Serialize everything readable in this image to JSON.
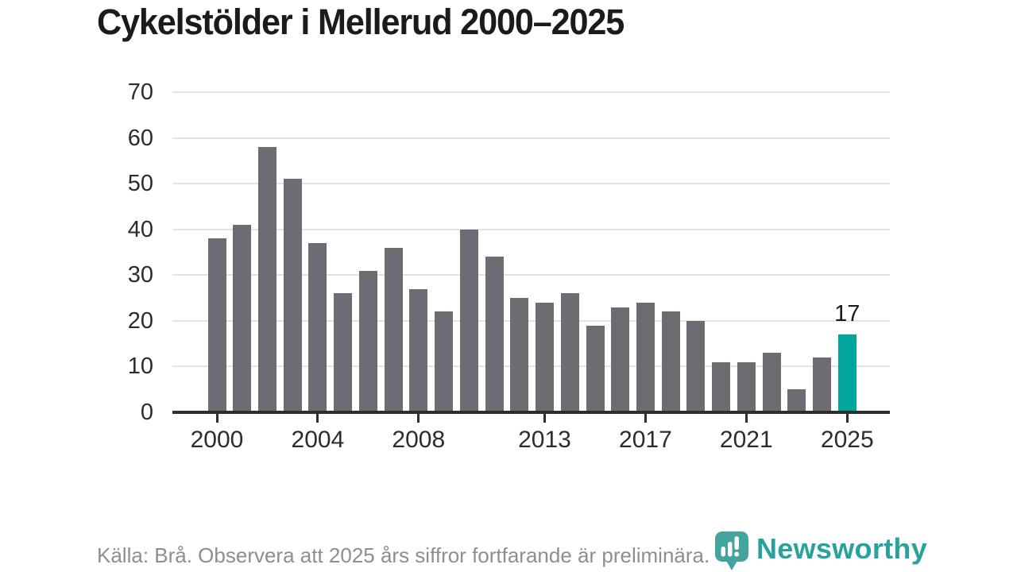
{
  "title": "Cykelstölder i Mellerud 2000–2025",
  "source_note": "Källa: Brå. Observera att 2025 års siffror fortfarande är preliminära.",
  "logo": {
    "text": "Newsworthy",
    "icon": "newsworthy-chart-bubble-icon"
  },
  "colors": {
    "bar": "#6e6c72",
    "highlight": "#00a59c",
    "gridline": "#e3e3e3",
    "axis": "#2e2e2e",
    "tick_label": "#2c2c2c",
    "title_text": "#1b1b1b",
    "source_text": "#8e8e8e",
    "logo_teal": "#43a49d"
  },
  "chart_data": {
    "type": "bar",
    "title": "Cykelstölder i Mellerud 2000–2025",
    "x": [
      2000,
      2001,
      2002,
      2003,
      2004,
      2005,
      2006,
      2007,
      2008,
      2009,
      2010,
      2011,
      2012,
      2013,
      2014,
      2015,
      2016,
      2017,
      2018,
      2019,
      2020,
      2021,
      2022,
      2023,
      2024,
      2025
    ],
    "values": [
      38,
      41,
      58,
      51,
      37,
      26,
      31,
      36,
      27,
      22,
      40,
      34,
      25,
      24,
      26,
      19,
      23,
      24,
      22,
      20,
      11,
      11,
      13,
      5,
      12,
      17
    ],
    "highlight_x": 2025,
    "highlight_value_label": "17",
    "x_tick_labels": [
      2000,
      2004,
      2008,
      2013,
      2017,
      2021,
      2025
    ],
    "y_ticks": [
      0,
      10,
      20,
      30,
      40,
      50,
      60,
      70
    ],
    "ylim": [
      0,
      70
    ],
    "xlabel": "",
    "ylabel": "",
    "grid": "horizontal",
    "legend": "none"
  }
}
